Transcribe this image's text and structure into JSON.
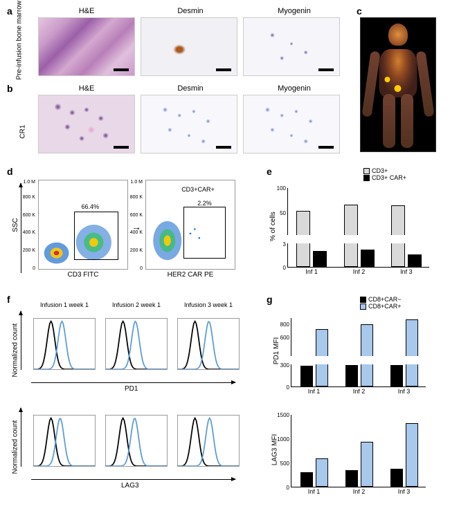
{
  "panels": {
    "a": {
      "label": "a",
      "side_label": "Pre-infusion\nbone marrow",
      "cols": [
        "H&E",
        "Desmin",
        "Myogenin"
      ]
    },
    "b": {
      "label": "b",
      "side_label": "CR1",
      "cols": [
        "H&E",
        "Desmin",
        "Myogenin"
      ]
    },
    "c": {
      "label": "c"
    },
    "d": {
      "label": "d",
      "ssc_label": "SSC",
      "left_xlabel": "CD3 FITC",
      "right_xlabel": "HER2 CAR PE",
      "left_gate_pct": "66.4%",
      "right_gate_pct": "2.2%",
      "top_label": "CD3+CAR+",
      "yticks": [
        "0",
        "200 K",
        "400 K",
        "600 K",
        "800 K",
        "1.0 M"
      ]
    },
    "e": {
      "label": "e",
      "ylabel": "% of cells",
      "legend": [
        {
          "label": "CD3+",
          "color": "#d9d9d9"
        },
        {
          "label": "CD3+ CAR+",
          "color": "#000000"
        }
      ],
      "categories": [
        "Inf 1",
        "Inf 2",
        "Inf 3"
      ],
      "series": [
        {
          "color": "#d9d9d9",
          "values": [
            52,
            65,
            63
          ]
        },
        {
          "color": "#000000",
          "values": [
            2.0,
            2.2,
            1.6
          ]
        }
      ],
      "yticks_upper": [
        50,
        100
      ],
      "yticks_lower": [
        0,
        3
      ],
      "break_at": 3,
      "upper_max": 100
    },
    "f": {
      "label": "f",
      "titles": [
        "Infusion 1\nweek 1",
        "Infusion 2\nweek 1",
        "Infusion 3\nweek 1"
      ],
      "row_ylabels": [
        "Normalized count",
        "Normalized count"
      ],
      "row_xlabels": [
        "PD1",
        "LAG3"
      ],
      "curve_colors": {
        "neg": "#000000",
        "pos": "#5a9bd5"
      },
      "pd1_shift": [
        0.3,
        0.34,
        0.38
      ],
      "lag3_shift": [
        0.25,
        0.32,
        0.4
      ]
    },
    "g": {
      "label": "g",
      "legend": [
        {
          "label": "CD8+CAR−",
          "color": "#000000"
        },
        {
          "label": "CD8+CAR+",
          "color": "#a8c8ec"
        }
      ],
      "categories": [
        "Inf 1",
        "Inf 2",
        "Inf 3"
      ],
      "pd1": {
        "ylabel": "PD1 MFI",
        "yticks_upper": [
          600,
          800
        ],
        "yticks_lower": [
          0,
          300
        ],
        "upper_max": 900,
        "series": [
          {
            "color": "#000000",
            "values": [
              280,
              290,
              295
            ]
          },
          {
            "color": "#a8c8ec",
            "values": [
              720,
              790,
              870
            ]
          }
        ]
      },
      "lag3": {
        "ylabel": "LAG3 MFI",
        "yticks": [
          0,
          500,
          1000,
          1500
        ],
        "ymax": 1500,
        "series": [
          {
            "color": "#000000",
            "values": [
              300,
              350,
              370
            ]
          },
          {
            "color": "#a8c8ec",
            "values": [
              580,
              930,
              1320
            ]
          }
        ]
      }
    }
  },
  "colors": {
    "bg": "#ffffff",
    "axis": "#000000"
  }
}
